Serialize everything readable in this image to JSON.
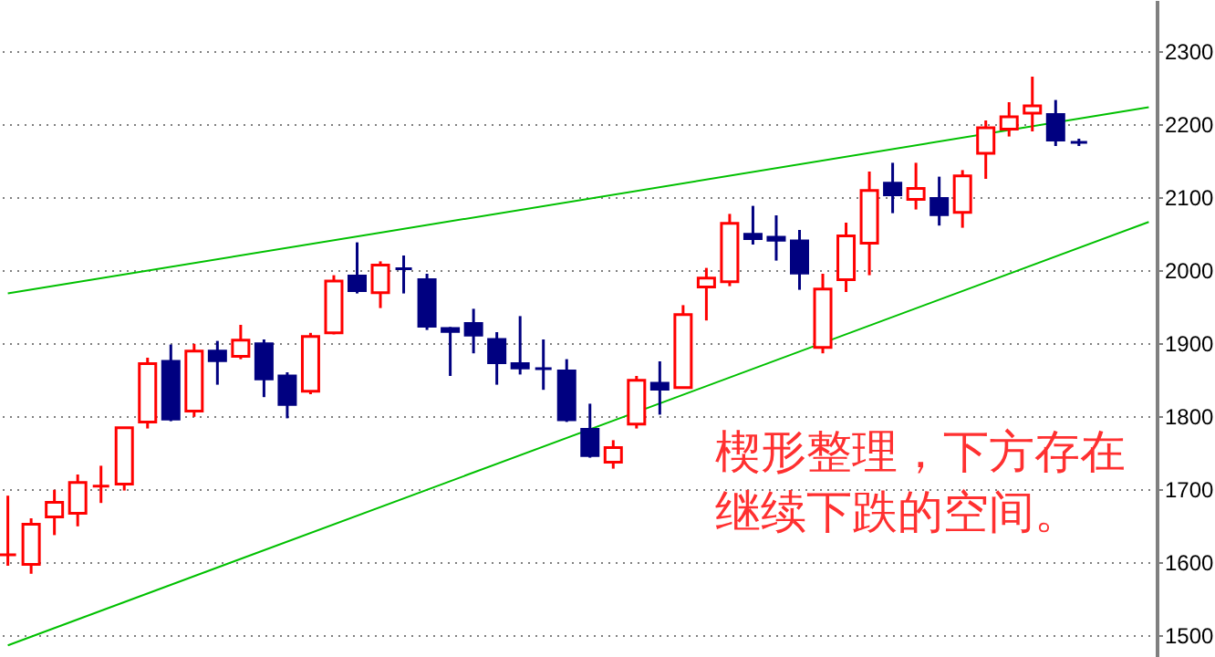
{
  "chart_data": {
    "type": "candlestick",
    "categories": [
      null,
      null,
      null,
      null,
      null,
      null,
      null,
      null,
      null,
      null,
      null,
      null,
      null,
      null,
      null,
      null,
      null,
      null,
      null,
      null,
      null,
      null,
      null,
      null,
      null,
      null,
      null,
      null,
      null,
      null,
      null,
      null,
      null,
      null,
      null,
      null,
      null,
      null,
      null,
      null,
      null,
      null,
      null,
      null,
      null,
      null,
      null,
      null,
      null,
      null
    ],
    "ohlc": [
      [
        1610,
        1691,
        1595,
        1610
      ],
      [
        1597,
        1660,
        1584,
        1652
      ],
      [
        1662,
        1699,
        1637,
        1682
      ],
      [
        1667,
        1720,
        1649,
        1709
      ],
      [
        1704,
        1732,
        1681,
        1704
      ],
      [
        1707,
        1784,
        1698,
        1784
      ],
      [
        1792,
        1880,
        1783,
        1872
      ],
      [
        1875,
        1898,
        1793,
        1796
      ],
      [
        1807,
        1899,
        1799,
        1889
      ],
      [
        1889,
        1903,
        1843,
        1876
      ],
      [
        1882,
        1925,
        1878,
        1904
      ],
      [
        1899,
        1905,
        1826,
        1851
      ],
      [
        1855,
        1860,
        1797,
        1816
      ],
      [
        1834,
        1914,
        1830,
        1909
      ],
      [
        1914,
        1993,
        1912,
        1985
      ],
      [
        1992,
        2038,
        1968,
        1972
      ],
      [
        1969,
        2012,
        1948,
        2007
      ],
      [
        2002,
        2020,
        1968,
        2002
      ],
      [
        1987,
        1995,
        1918,
        1923
      ],
      [
        1920,
        1922,
        1855,
        1916
      ],
      [
        1927,
        1947,
        1886,
        1911
      ],
      [
        1905,
        1915,
        1843,
        1873
      ],
      [
        1872,
        1937,
        1857,
        1866
      ],
      [
        1865,
        1905,
        1836,
        1865
      ],
      [
        1862,
        1878,
        1792,
        1795
      ],
      [
        1782,
        1817,
        1743,
        1746
      ],
      [
        1737,
        1767,
        1728,
        1757
      ],
      [
        1789,
        1855,
        1783,
        1849
      ],
      [
        1845,
        1875,
        1802,
        1837
      ],
      [
        1839,
        1952,
        1839,
        1939
      ],
      [
        1977,
        2003,
        1931,
        1989
      ],
      [
        1984,
        2077,
        1978,
        2064
      ],
      [
        2049,
        2088,
        2035,
        2043
      ],
      [
        2045,
        2075,
        2013,
        2041
      ],
      [
        2040,
        2055,
        1973,
        1996
      ],
      [
        1894,
        1995,
        1886,
        1974
      ],
      [
        1987,
        2065,
        1970,
        2047
      ],
      [
        2037,
        2135,
        1993,
        2109
      ],
      [
        2119,
        2147,
        2078,
        2103
      ],
      [
        2097,
        2147,
        2083,
        2112
      ],
      [
        2098,
        2128,
        2061,
        2076
      ],
      [
        2079,
        2137,
        2058,
        2129
      ],
      [
        2160,
        2205,
        2125,
        2195
      ],
      [
        2193,
        2230,
        2183,
        2210
      ],
      [
        2215,
        2265,
        2190,
        2225
      ],
      [
        2213,
        2233,
        2170,
        2178
      ],
      [
        2175,
        2180,
        2170,
        2175
      ],
      null,
      null,
      null
    ],
    "colors": [
      "#ff0000",
      "#ff0000",
      "#ff0000",
      "#ff0000",
      "#ff0000",
      "#ff0000",
      "#ff0000",
      "#000080",
      "#ff0000",
      "#000080",
      "#ff0000",
      "#000080",
      "#000080",
      "#ff0000",
      "#ff0000",
      "#000080",
      "#ff0000",
      "#000080",
      "#000080",
      "#000080",
      "#000080",
      "#000080",
      "#000080",
      "#000080",
      "#000080",
      "#000080",
      "#ff0000",
      "#ff0000",
      "#000080",
      "#ff0000",
      "#ff0000",
      "#ff0000",
      "#000080",
      "#000080",
      "#000080",
      "#ff0000",
      "#ff0000",
      "#ff0000",
      "#000080",
      "#ff0000",
      "#000080",
      "#ff0000",
      "#ff0000",
      "#ff0000",
      "#ff0000",
      "#000080",
      "#000080",
      null,
      null,
      null
    ],
    "series": [
      {
        "type": "line",
        "color": "#00c000",
        "values": [
          1968,
          null,
          null,
          null,
          null,
          null,
          null,
          null,
          null,
          null,
          null,
          null,
          null,
          null,
          null,
          null,
          null,
          null,
          null,
          null,
          null,
          null,
          null,
          null,
          null,
          null,
          null,
          null,
          null,
          null,
          null,
          null,
          null,
          null,
          null,
          null,
          null,
          null,
          null,
          null,
          null,
          null,
          null,
          null,
          null,
          null,
          null,
          null,
          null,
          2223
        ]
      },
      {
        "type": "line",
        "color": "#00c000",
        "values": [
          1486,
          null,
          null,
          null,
          null,
          null,
          null,
          null,
          null,
          null,
          null,
          null,
          null,
          null,
          null,
          null,
          null,
          null,
          null,
          null,
          null,
          null,
          null,
          null,
          null,
          null,
          null,
          null,
          null,
          null,
          null,
          null,
          null,
          null,
          null,
          null,
          null,
          null,
          null,
          null,
          null,
          null,
          null,
          null,
          null,
          null,
          null,
          null,
          null,
          2066
        ]
      }
    ],
    "ylim": [
      1470,
      2370
    ],
    "yticks": [
      1500,
      1600,
      1700,
      1800,
      1900,
      2000,
      2100,
      2200,
      2300
    ],
    "grid": "y",
    "tick_labels": "y",
    "annotations": [
      "楔形整理，下方存在继续下跌的空间。"
    ]
  }
}
